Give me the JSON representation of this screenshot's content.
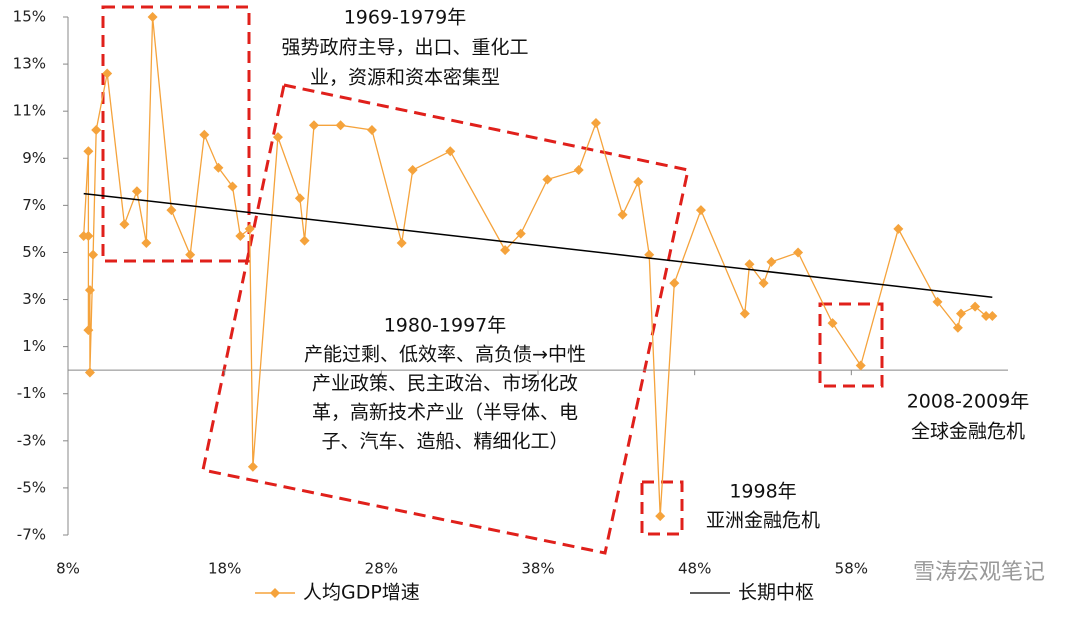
{
  "chart_data": {
    "type": "line",
    "xlim": [
      8,
      68
    ],
    "xticks": [
      {
        "value": 8,
        "label": "8%"
      },
      {
        "value": 18,
        "label": "18%"
      },
      {
        "value": 28,
        "label": "28%"
      },
      {
        "value": 38,
        "label": "38%"
      },
      {
        "value": 48,
        "label": "48%"
      },
      {
        "value": 58,
        "label": "58%"
      }
    ],
    "ylim": [
      -7,
      15
    ],
    "yticks": [
      {
        "value": 15,
        "label": "15%"
      },
      {
        "value": 13,
        "label": "13%"
      },
      {
        "value": 11,
        "label": "11%"
      },
      {
        "value": 9,
        "label": "9%"
      },
      {
        "value": 7,
        "label": "7%"
      },
      {
        "value": 5,
        "label": "5%"
      },
      {
        "value": 3,
        "label": "3%"
      },
      {
        "value": 1,
        "label": "1%"
      },
      {
        "value": -1,
        "label": "-1%"
      },
      {
        "value": -3,
        "label": "-3%"
      },
      {
        "value": -5,
        "label": "-5%"
      },
      {
        "value": -7,
        "label": "-7%"
      }
    ],
    "series": [
      {
        "name": "人均GDP增速",
        "color": "#f5a33c",
        "marker": "diamond",
        "x": [
          9.0,
          9.3,
          9.3,
          9.3,
          9.4,
          9.4,
          9.6,
          9.8,
          10.5,
          11.6,
          12.4,
          13.0,
          13.4,
          14.6,
          15.8,
          16.7,
          17.6,
          18.5,
          19.0,
          19.6,
          19.8,
          21.4,
          22.8,
          23.1,
          23.7,
          25.4,
          27.4,
          29.3,
          30.0,
          32.4,
          35.9,
          36.9,
          38.6,
          40.6,
          41.7,
          43.4,
          44.4,
          45.1,
          45.8,
          46.7,
          48.4,
          51.2,
          51.5,
          52.4,
          52.9,
          54.6,
          56.8,
          58.6,
          61.0,
          63.5,
          64.8,
          65.0,
          65.9,
          66.6,
          67.0
        ],
        "values": [
          5.7,
          9.3,
          5.7,
          1.7,
          3.4,
          -0.1,
          4.9,
          10.2,
          12.6,
          6.2,
          7.6,
          5.4,
          15.0,
          6.8,
          4.9,
          10.0,
          8.6,
          7.8,
          5.7,
          6.0,
          -4.1,
          9.9,
          7.3,
          5.5,
          10.4,
          10.4,
          10.2,
          5.4,
          8.5,
          9.3,
          5.1,
          5.8,
          8.1,
          8.5,
          10.5,
          6.6,
          8.0,
          4.9,
          -6.2,
          3.7,
          6.8,
          2.4,
          4.5,
          3.7,
          4.6,
          5.0,
          2.0,
          0.2,
          6.0,
          2.9,
          1.8,
          2.4,
          2.7,
          2.3,
          2.3
        ]
      },
      {
        "name": "长期中枢",
        "color": "#000000",
        "marker": "none",
        "x": [
          9.0,
          67.0
        ],
        "values": [
          7.5,
          3.1
        ]
      }
    ],
    "annotations": [
      {
        "lines": [
          "1969-1979年",
          "强势政府主导，出口、重化工",
          "业，资源和资本密集型"
        ]
      },
      {
        "lines": [
          "1980-1997年",
          "产能过剩、低效率、高负债→中性",
          "产业政策、民主政治、市场化改",
          "革，高新技术产业（半导体、电",
          "子、汽车、造船、精细化工）"
        ]
      },
      {
        "lines": [
          "1998年",
          "亚洲金融危机"
        ]
      },
      {
        "lines": [
          "2008-2009年",
          "全球金融危机"
        ]
      }
    ],
    "watermark": "雪涛宏观笔记"
  }
}
